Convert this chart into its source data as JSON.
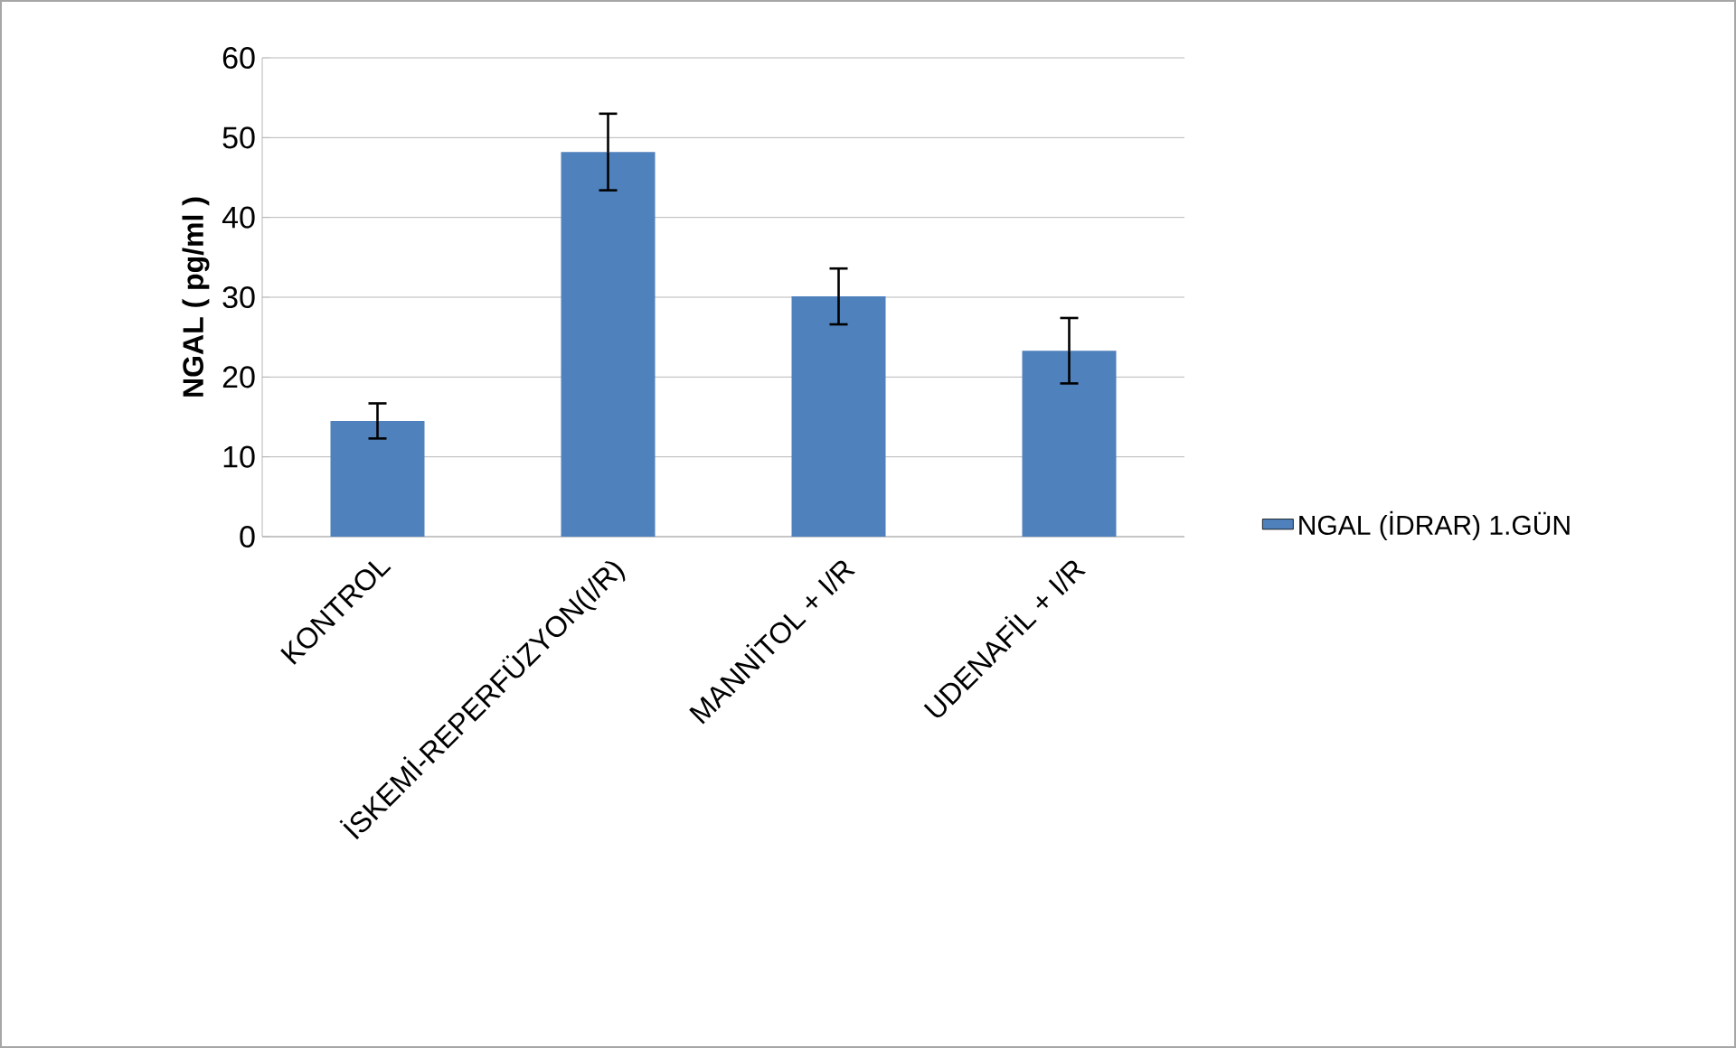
{
  "chart_data": {
    "type": "bar",
    "ylabel": "NGAL ( pg/ml )",
    "categories": [
      "KONTROL",
      "İSKEMİ-REPERFÜZYON(I/R)",
      "MANNİTOL + I/R",
      "UDENAFİL + I/R"
    ],
    "series": [
      {
        "name": "NGAL (İDRAR) 1.GÜN",
        "color": "#4f81bd",
        "values": [
          14.5,
          48.2,
          30.1,
          23.3
        ],
        "errors": [
          2.2,
          4.8,
          3.5,
          4.1
        ]
      }
    ],
    "ylim": [
      0,
      60
    ],
    "yticks": [
      0,
      10,
      20,
      30,
      40,
      50,
      60
    ],
    "grid": "y",
    "legend": "right"
  }
}
